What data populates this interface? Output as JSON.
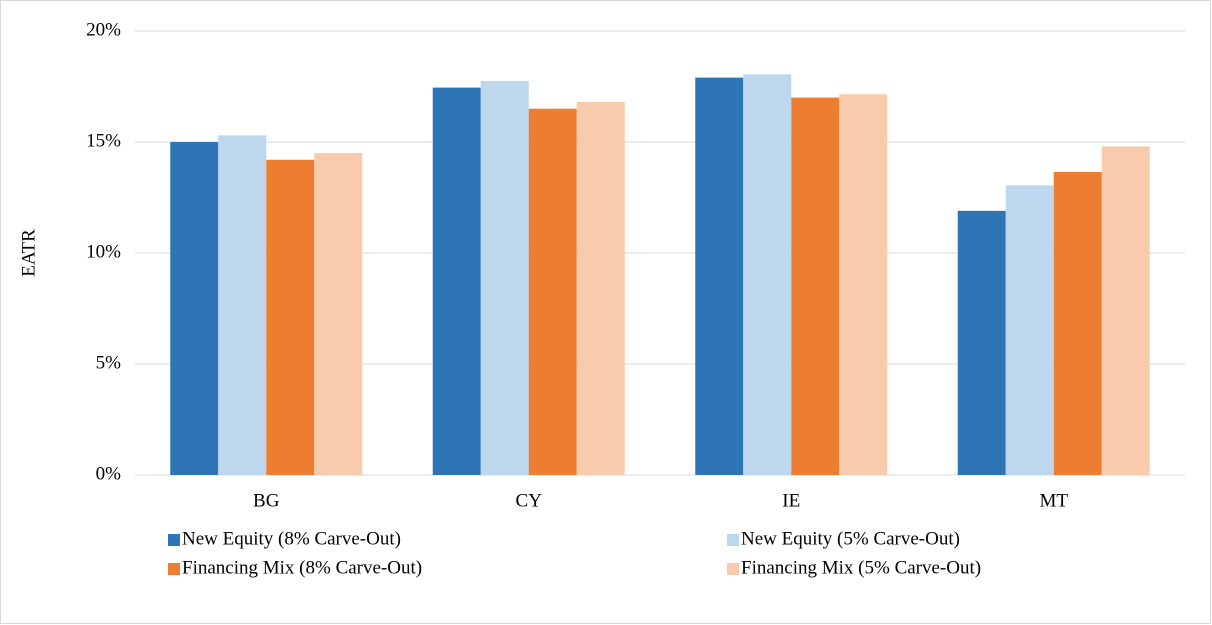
{
  "chart_data": {
    "type": "bar",
    "y_label": "EATR",
    "categories": [
      "BG",
      "CY",
      "IE",
      "MT"
    ],
    "series": [
      {
        "name": "New Equity (8% Carve-Out)",
        "color": "#2e75b6",
        "values": [
          15.0,
          17.45,
          17.9,
          11.9
        ]
      },
      {
        "name": "New Equity (5% Carve-Out)",
        "color": "#bdd7ee",
        "values": [
          15.3,
          17.75,
          18.05,
          13.05
        ]
      },
      {
        "name": "Financing Mix (8% Carve-Out)",
        "color": "#ed7d31",
        "values": [
          14.2,
          16.5,
          17.0,
          13.65
        ]
      },
      {
        "name": "Financing Mix (5% Carve-Out)",
        "color": "#f8cbad",
        "values": [
          14.5,
          16.8,
          17.15,
          14.8
        ]
      }
    ],
    "ylim": [
      0,
      20
    ],
    "yticks": [
      {
        "value": 0,
        "label": "0%"
      },
      {
        "value": 5,
        "label": "5%"
      },
      {
        "value": 10,
        "label": "10%"
      },
      {
        "value": 15,
        "label": "15%"
      },
      {
        "value": 20,
        "label": "20%"
      }
    ],
    "grid": true,
    "legend": "bottom"
  }
}
